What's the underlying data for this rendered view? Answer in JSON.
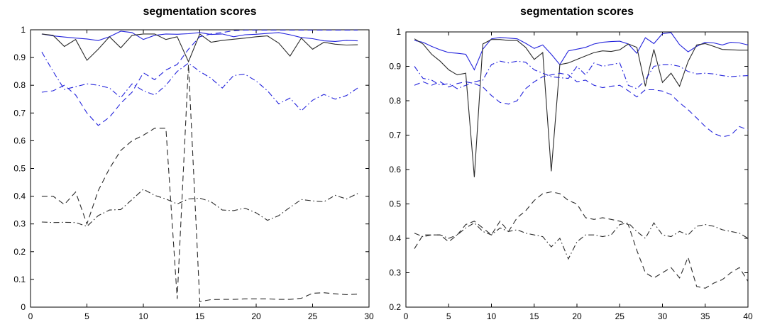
{
  "page": {
    "background": "#ffffff"
  },
  "colors": {
    "blue": "#2323dc",
    "black": "#2b2b2b",
    "axis": "#000000",
    "tick_label": "#000000"
  },
  "chart_data": [
    {
      "type": "line",
      "title": "segmentation scores",
      "xlabel": "",
      "ylabel": "",
      "xlim": [
        0,
        30
      ],
      "ylim": [
        0,
        1
      ],
      "xticks": [
        0,
        5,
        10,
        15,
        20,
        25,
        30
      ],
      "yticks": [
        0,
        0.1,
        0.2,
        0.3,
        0.4,
        0.5,
        0.6,
        0.7,
        0.8,
        0.9,
        1
      ],
      "ytick_labels": [
        "0",
        "0.1",
        "0.2",
        "0.3",
        "0.4",
        "0.5",
        "0.6",
        "0.7",
        "0.8",
        "0.9",
        "1"
      ],
      "grid": false,
      "legend": null,
      "x": [
        1,
        2,
        3,
        4,
        5,
        6,
        7,
        8,
        9,
        10,
        11,
        12,
        13,
        14,
        15,
        16,
        17,
        18,
        19,
        20,
        21,
        22,
        23,
        24,
        25,
        26,
        27,
        28,
        29
      ],
      "series": [
        {
          "name": "blue-solid",
          "color": "blue",
          "style": "solid",
          "values": [
            0.985,
            0.978,
            0.974,
            0.97,
            0.967,
            0.961,
            0.975,
            0.995,
            0.99,
            0.965,
            0.98,
            0.985,
            0.984,
            0.986,
            0.99,
            0.983,
            0.985,
            0.975,
            0.982,
            0.984,
            0.987,
            0.99,
            0.982,
            0.972,
            0.968,
            0.96,
            0.958,
            0.962,
            0.96
          ]
        },
        {
          "name": "black-solid",
          "color": "black",
          "style": "solid",
          "values": [
            0.985,
            0.98,
            0.94,
            0.965,
            0.89,
            0.93,
            0.975,
            0.935,
            0.98,
            0.985,
            0.985,
            0.965,
            0.975,
            0.885,
            0.985,
            0.955,
            0.962,
            0.966,
            0.97,
            0.975,
            0.978,
            0.952,
            0.905,
            0.97,
            0.93,
            0.955,
            0.948,
            0.945,
            0.946
          ]
        },
        {
          "name": "blue-dashed",
          "color": "blue",
          "style": "dashed",
          "values": [
            0.775,
            0.78,
            0.8,
            0.765,
            0.7,
            0.655,
            0.685,
            0.735,
            0.775,
            0.845,
            0.82,
            0.855,
            0.875,
            0.93,
            0.975,
            0.985,
            0.99,
            0.997,
            0.999,
            0.999,
            0.999,
            0.999,
            0.999,
            0.999,
            0.999,
            0.999,
            0.999,
            0.999,
            0.999
          ]
        },
        {
          "name": "blue-dashdot",
          "color": "blue",
          "style": "dashdot",
          "values": [
            0.92,
            0.85,
            0.785,
            0.795,
            0.805,
            0.8,
            0.79,
            0.755,
            0.805,
            0.78,
            0.765,
            0.8,
            0.85,
            0.88,
            0.85,
            0.825,
            0.79,
            0.835,
            0.84,
            0.815,
            0.78,
            0.733,
            0.754,
            0.708,
            0.746,
            0.767,
            0.75,
            0.763,
            0.79
          ]
        },
        {
          "name": "black-dashed",
          "color": "black",
          "style": "dashed",
          "values": [
            0.4,
            0.4,
            0.37,
            0.415,
            0.3,
            0.42,
            0.5,
            0.565,
            0.6,
            0.62,
            0.645,
            0.645,
            0.03,
            0.875,
            0.02,
            0.027,
            0.028,
            0.028,
            0.03,
            0.03,
            0.03,
            0.028,
            0.028,
            0.032,
            0.05,
            0.052,
            0.048,
            0.045,
            0.047
          ]
        },
        {
          "name": "black-dashdot",
          "color": "black",
          "style": "dashdot",
          "values": [
            0.307,
            0.305,
            0.306,
            0.305,
            0.291,
            0.33,
            0.35,
            0.352,
            0.388,
            0.425,
            0.403,
            0.39,
            0.372,
            0.39,
            0.393,
            0.38,
            0.35,
            0.348,
            0.357,
            0.34,
            0.313,
            0.33,
            0.36,
            0.388,
            0.383,
            0.38,
            0.403,
            0.39,
            0.41
          ]
        }
      ]
    },
    {
      "type": "line",
      "title": "segmentation scores",
      "xlabel": "",
      "ylabel": "",
      "xlim": [
        0,
        40
      ],
      "ylim": [
        0.2,
        1
      ],
      "xticks": [
        0,
        5,
        10,
        15,
        20,
        25,
        30,
        35,
        40
      ],
      "yticks": [
        0.2,
        0.3,
        0.4,
        0.5,
        0.6,
        0.7,
        0.8,
        0.9,
        1
      ],
      "ytick_labels": [
        "0.2",
        "0.3",
        "0.4",
        "0.5",
        "0.6",
        "0.7",
        "0.8",
        "0.9",
        "1"
      ],
      "grid": false,
      "legend": null,
      "x": [
        1,
        2,
        3,
        4,
        5,
        6,
        7,
        8,
        9,
        10,
        11,
        12,
        13,
        14,
        15,
        16,
        17,
        18,
        19,
        20,
        21,
        22,
        23,
        24,
        25,
        26,
        27,
        28,
        29,
        30,
        31,
        32,
        33,
        34,
        35,
        36,
        37,
        38,
        39,
        40
      ],
      "series": [
        {
          "name": "blue-solid",
          "color": "blue",
          "style": "solid",
          "values": [
            0.975,
            0.97,
            0.958,
            0.948,
            0.94,
            0.938,
            0.935,
            0.89,
            0.95,
            0.98,
            0.984,
            0.982,
            0.98,
            0.967,
            0.952,
            0.962,
            0.935,
            0.905,
            0.945,
            0.95,
            0.955,
            0.965,
            0.97,
            0.972,
            0.973,
            0.965,
            0.938,
            0.983,
            0.966,
            0.995,
            0.998,
            0.963,
            0.942,
            0.958,
            0.97,
            0.968,
            0.962,
            0.97,
            0.968,
            0.962
          ]
        },
        {
          "name": "black-solid",
          "color": "black",
          "style": "solid",
          "values": [
            0.98,
            0.965,
            0.935,
            0.915,
            0.89,
            0.875,
            0.88,
            0.578,
            0.965,
            0.978,
            0.978,
            0.975,
            0.975,
            0.955,
            0.92,
            0.94,
            0.595,
            0.905,
            0.91,
            0.92,
            0.93,
            0.94,
            0.945,
            0.943,
            0.948,
            0.965,
            0.955,
            0.842,
            0.949,
            0.853,
            0.88,
            0.842,
            0.914,
            0.962,
            0.966,
            0.958,
            0.949,
            0.948,
            0.947,
            0.947
          ]
        },
        {
          "name": "blue-dashed",
          "color": "blue",
          "style": "dashed",
          "values": [
            0.845,
            0.855,
            0.845,
            0.855,
            0.84,
            0.85,
            0.855,
            0.85,
            0.84,
            0.815,
            0.795,
            0.79,
            0.8,
            0.835,
            0.855,
            0.87,
            0.875,
            0.88,
            0.875,
            0.855,
            0.86,
            0.845,
            0.838,
            0.842,
            0.845,
            0.829,
            0.811,
            0.832,
            0.832,
            0.828,
            0.818,
            0.794,
            0.774,
            0.75,
            0.725,
            0.705,
            0.695,
            0.7,
            0.725,
            0.715
          ]
        },
        {
          "name": "blue-dashdot",
          "color": "blue",
          "style": "dashdot",
          "values": [
            0.9,
            0.865,
            0.86,
            0.845,
            0.85,
            0.835,
            0.845,
            0.855,
            0.86,
            0.905,
            0.915,
            0.91,
            0.915,
            0.912,
            0.89,
            0.88,
            0.87,
            0.867,
            0.865,
            0.9,
            0.875,
            0.91,
            0.9,
            0.905,
            0.91,
            0.845,
            0.835,
            0.86,
            0.9,
            0.905,
            0.905,
            0.9,
            0.885,
            0.878,
            0.88,
            0.878,
            0.873,
            0.87,
            0.872,
            0.873
          ]
        },
        {
          "name": "black-dashed",
          "color": "black",
          "style": "dashed",
          "values": [
            0.37,
            0.41,
            0.41,
            0.41,
            0.39,
            0.41,
            0.44,
            0.45,
            0.43,
            0.41,
            0.45,
            0.42,
            0.46,
            0.48,
            0.51,
            0.53,
            0.535,
            0.53,
            0.51,
            0.5,
            0.46,
            0.455,
            0.46,
            0.455,
            0.45,
            0.44,
            0.365,
            0.3,
            0.285,
            0.3,
            0.315,
            0.285,
            0.345,
            0.26,
            0.255,
            0.27,
            0.28,
            0.3,
            0.315,
            0.275
          ]
        },
        {
          "name": "black-dashdot",
          "color": "black",
          "style": "dashdot",
          "values": [
            0.415,
            0.405,
            0.41,
            0.41,
            0.4,
            0.41,
            0.43,
            0.445,
            0.42,
            0.41,
            0.43,
            0.42,
            0.425,
            0.415,
            0.41,
            0.405,
            0.375,
            0.4,
            0.34,
            0.39,
            0.41,
            0.41,
            0.405,
            0.41,
            0.44,
            0.445,
            0.42,
            0.4,
            0.445,
            0.41,
            0.405,
            0.42,
            0.41,
            0.435,
            0.44,
            0.435,
            0.425,
            0.42,
            0.415,
            0.4
          ]
        }
      ]
    }
  ]
}
